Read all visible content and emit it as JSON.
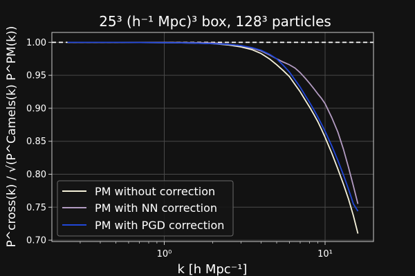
{
  "chart_data": {
    "type": "line",
    "title": "25³ (h⁻¹ Mpc)³ box, 128³ particles",
    "xlabel": "k [h Mpc⁻¹]",
    "ylabel": "P^cross(k) / √(P^Camels(k) P^PM(k))",
    "xscale": "log",
    "xlim": [
      0.2,
      20
    ],
    "ylim": [
      0.698,
      1.015
    ],
    "grid": true,
    "legend": "lower-left",
    "reference_line": {
      "y": 1.0,
      "style": "dashed",
      "color": "#ffffff"
    },
    "x_ticks": [
      {
        "value": 1,
        "label": "10⁰"
      },
      {
        "value": 10,
        "label": "10¹"
      }
    ],
    "y_ticks": [
      {
        "value": 0.7,
        "label": "0.70"
      },
      {
        "value": 0.75,
        "label": "0.75"
      },
      {
        "value": 0.8,
        "label": "0.80"
      },
      {
        "value": 0.85,
        "label": "0.85"
      },
      {
        "value": 0.9,
        "label": "0.90"
      },
      {
        "value": 0.95,
        "label": "0.95"
      },
      {
        "value": 1.0,
        "label": "1.00"
      }
    ],
    "series": [
      {
        "name": "PM without correction",
        "color": "#f7f3dc",
        "x": [
          0.25,
          0.5,
          1.0,
          1.5,
          2.0,
          2.5,
          3.0,
          3.5,
          4.0,
          4.5,
          5.0,
          5.5,
          6.0,
          6.5,
          7.0,
          7.5,
          8.0,
          8.5,
          9.0,
          9.5,
          10.0,
          11.0,
          12.0,
          13.0,
          14.0,
          15.0,
          16.0
        ],
        "y": [
          1.0,
          1.0,
          0.9995,
          0.999,
          0.998,
          0.996,
          0.993,
          0.989,
          0.983,
          0.975,
          0.966,
          0.957,
          0.948,
          0.936,
          0.925,
          0.913,
          0.902,
          0.891,
          0.88,
          0.868,
          0.856,
          0.832,
          0.808,
          0.785,
          0.762,
          0.737,
          0.71
        ]
      },
      {
        "name": "PM with NN correction",
        "color": "#b49cc3",
        "x": [
          0.25,
          0.5,
          1.0,
          1.5,
          2.0,
          2.5,
          3.0,
          3.5,
          4.0,
          4.5,
          5.0,
          5.5,
          6.0,
          6.5,
          7.0,
          7.5,
          8.0,
          8.5,
          9.0,
          9.5,
          10.0,
          11.0,
          12.0,
          13.0,
          14.0,
          15.0,
          16.0
        ],
        "y": [
          1.0,
          1.0,
          1.0,
          0.9995,
          0.999,
          0.997,
          0.995,
          0.991,
          0.987,
          0.981,
          0.975,
          0.97,
          0.966,
          0.961,
          0.954,
          0.946,
          0.938,
          0.93,
          0.922,
          0.915,
          0.907,
          0.886,
          0.864,
          0.838,
          0.81,
          0.782,
          0.755
        ]
      },
      {
        "name": "PM with PGD correction",
        "color": "#2147d8",
        "x": [
          0.25,
          0.5,
          1.0,
          1.5,
          2.0,
          2.5,
          3.0,
          3.5,
          4.0,
          4.5,
          5.0,
          5.5,
          6.0,
          6.5,
          7.0,
          7.5,
          8.0,
          8.5,
          9.0,
          9.5,
          10.0,
          11.0,
          12.0,
          13.0,
          14.0,
          15.0,
          16.0
        ],
        "y": [
          1.0,
          1.0,
          0.9995,
          0.999,
          0.998,
          0.997,
          0.995,
          0.992,
          0.988,
          0.982,
          0.975,
          0.965,
          0.955,
          0.943,
          0.932,
          0.92,
          0.909,
          0.898,
          0.887,
          0.876,
          0.865,
          0.843,
          0.821,
          0.799,
          0.777,
          0.755,
          0.744
        ]
      }
    ]
  }
}
